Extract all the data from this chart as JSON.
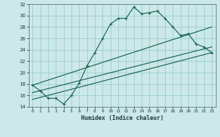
{
  "xlabel": "Humidex (Indice chaleur)",
  "bg_color": "#cce8e8",
  "grid_color": "#99cccc",
  "line_color": "#1a6655",
  "xlim": [
    -0.5,
    23.5
  ],
  "ylim": [
    14,
    32
  ],
  "xticks": [
    0,
    1,
    2,
    3,
    4,
    5,
    6,
    7,
    8,
    9,
    10,
    11,
    12,
    13,
    14,
    15,
    16,
    17,
    18,
    19,
    20,
    21,
    22,
    23
  ],
  "yticks": [
    14,
    16,
    18,
    20,
    22,
    24,
    26,
    28,
    30,
    32
  ],
  "humidex_x": [
    0,
    1,
    2,
    3,
    4,
    5,
    6,
    7,
    8,
    9,
    10,
    11,
    12,
    13,
    14,
    15,
    16,
    17,
    18,
    19,
    20,
    21,
    22,
    23
  ],
  "humidex_y": [
    17.8,
    16.8,
    15.5,
    15.5,
    14.5,
    16.0,
    18.2,
    21.2,
    23.5,
    26.0,
    28.5,
    29.5,
    29.5,
    31.5,
    30.3,
    30.5,
    30.8,
    29.5,
    28.0,
    26.5,
    26.8,
    25.0,
    24.5,
    23.5
  ],
  "trend1_x": [
    0,
    23
  ],
  "trend1_y": [
    17.8,
    28.0
  ],
  "trend2_x": [
    0,
    23
  ],
  "trend2_y": [
    16.5,
    24.5
  ],
  "trend3_x": [
    0,
    23
  ],
  "trend3_y": [
    15.3,
    23.5
  ]
}
